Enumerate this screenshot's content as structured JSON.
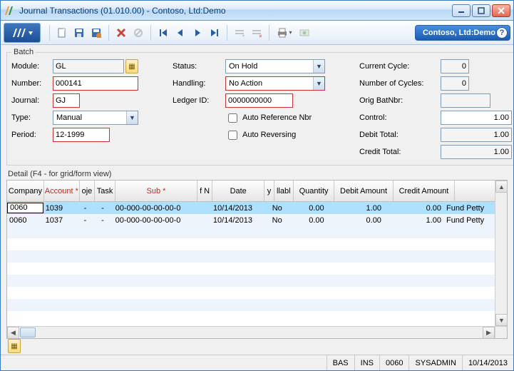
{
  "window": {
    "title": "Journal Transactions (01.010.00) - Contoso, Ltd:Demo"
  },
  "company_pill": "Contoso, Ltd:Demo",
  "batch": {
    "legend": "Batch",
    "labels": {
      "module": "Module:",
      "number": "Number:",
      "journal": "Journal:",
      "type": "Type:",
      "period": "Period:",
      "status": "Status:",
      "handling": "Handling:",
      "ledger": "Ledger ID:",
      "autoref": "Auto Reference Nbr",
      "autorev": "Auto Reversing",
      "cycle": "Current Cycle:",
      "ncycles": "Number of Cycles:",
      "orig": "Orig BatNbr:",
      "control": "Control:",
      "debit": "Debit Total:",
      "credit": "Credit Total:"
    },
    "values": {
      "module": "GL",
      "number": "000141",
      "journal": "GJ",
      "type": "Manual",
      "period": "12-1999",
      "status": "On Hold",
      "handling": "No Action",
      "ledger": "0000000000",
      "cycle": "0",
      "ncycles": "0",
      "orig": "",
      "control": "1.00",
      "debit": "1.00",
      "credit": "1.00"
    }
  },
  "detail": {
    "label": "Detail (F4 - for grid/form view)",
    "headers": {
      "company": "Company",
      "account": "Account *",
      "oje": "oje",
      "task": "Task",
      "sub": "Sub *",
      "fn": "f N",
      "date": "Date",
      "y": "y",
      "llabl": "llabl",
      "qty": "Quantity",
      "debit": "Debit Amount",
      "credit": "Credit Amount"
    },
    "rows": [
      {
        "company": "0060",
        "account": "1039",
        "oje": "-",
        "task": "-",
        "sub": "00-000-00-00-00-0",
        "fn": "",
        "date": "10/14/2013",
        "y": "",
        "llabl": "No",
        "qty": "0.00",
        "debit": "1.00",
        "credit": "0.00",
        "desc": "Fund Petty",
        "selected": true
      },
      {
        "company": "0060",
        "account": "1037",
        "oje": "-",
        "task": "-",
        "sub": "00-000-00-00-00-0",
        "fn": "",
        "date": "10/14/2013",
        "y": "",
        "llabl": "No",
        "qty": "0.00",
        "debit": "0.00",
        "credit": "1.00",
        "desc": "Fund Petty",
        "selected": false
      }
    ]
  },
  "statusbar": {
    "bas": "BAS",
    "ins": "INS",
    "co": "0060",
    "user": "SYSADMIN",
    "date": "10/14/2013"
  },
  "colors": {
    "title_gradient_top": "#f9fcff",
    "title_gradient_bottom": "#cfe5fb",
    "accent": "#1a5bb0",
    "required": "#b03028",
    "field_border": "#7f9db9",
    "error_border": "#c33",
    "row_alt": "#eef4fb",
    "row_selected": "#aee1ff"
  }
}
